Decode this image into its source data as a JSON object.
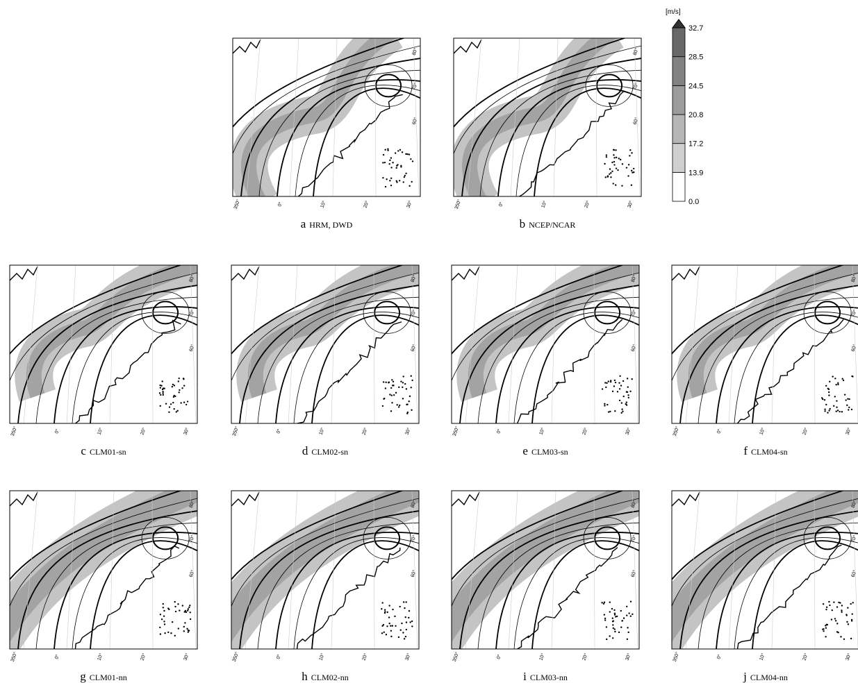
{
  "panels": [
    {
      "letter": "a",
      "label": "HRM, DWD"
    },
    {
      "letter": "b",
      "label": "NCEP/NCAR"
    },
    {
      "letter": "c",
      "label": "CLM01-sn"
    },
    {
      "letter": "d",
      "label": "CLM02-sn"
    },
    {
      "letter": "e",
      "label": "CLM03-sn"
    },
    {
      "letter": "f",
      "label": "CLM04-sn"
    },
    {
      "letter": "g",
      "label": "CLM01-nn"
    },
    {
      "letter": "h",
      "label": "CLM02-nn"
    },
    {
      "letter": "i",
      "label": "CLM03-nn"
    },
    {
      "letter": "j",
      "label": "CLM04-nn"
    }
  ],
  "map_grid": {
    "lon_labels": [
      "350°",
      "0°",
      "10°",
      "20°",
      "30°"
    ],
    "lat_labels": [
      "80°",
      "70°",
      "60°"
    ]
  },
  "colorbar": {
    "unit": "[m/s]",
    "levels": [
      "0.0",
      "13.9",
      "17.2",
      "20.8",
      "24.5",
      "28.5",
      "32.7"
    ]
  }
}
